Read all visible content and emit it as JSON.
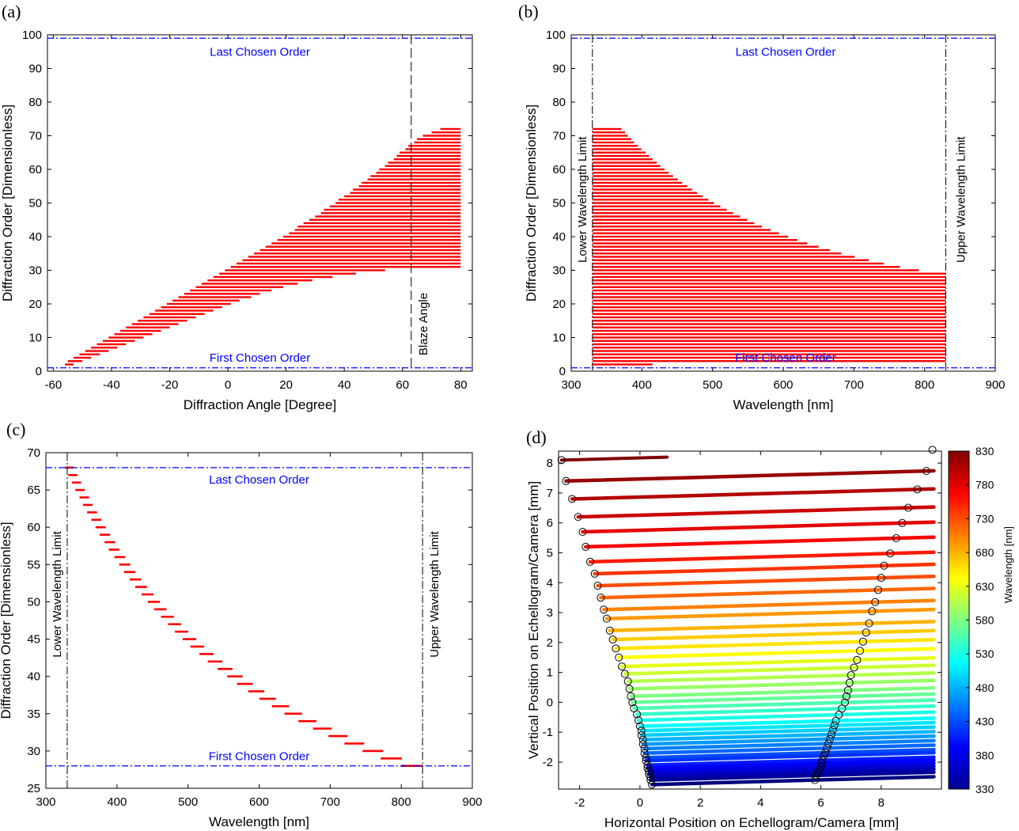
{
  "panels": [
    {
      "letter": "(a)",
      "chart_data": {
        "type": "bar",
        "orientation": "horizontal-range",
        "xlabel": "Diffraction Angle [Degree]",
        "ylabel": "Diffraction Order [Dimensionless]",
        "xlim": [
          -62,
          84
        ],
        "ylim": [
          0,
          100
        ],
        "xticks": [
          -60,
          -40,
          -20,
          0,
          20,
          40,
          60,
          80
        ],
        "yticks": [
          0,
          10,
          20,
          30,
          40,
          50,
          60,
          70,
          80,
          90,
          100
        ],
        "series": {
          "name": "diffraction orders",
          "orders_from": 2,
          "orders_to": 72,
          "start_angle": [
            -56,
            -55,
            -53,
            -51,
            -49,
            -47,
            -45,
            -43,
            -41,
            -39,
            -37,
            -35,
            -33,
            -31,
            -29,
            -27,
            -25,
            -23,
            -21,
            -19,
            -17,
            -15,
            -13,
            -11,
            -9,
            -7,
            -5,
            -3,
            -1,
            1,
            3,
            5,
            7,
            9,
            11,
            13,
            15,
            17,
            19,
            21,
            23,
            24,
            26,
            28,
            30,
            32,
            33,
            35,
            37,
            38,
            40,
            42,
            43,
            45,
            46,
            48,
            49,
            51,
            52,
            54,
            55,
            57,
            58,
            59,
            61,
            62,
            64,
            65,
            67,
            70,
            73
          ],
          "end_angle": [
            -53,
            -50,
            -47,
            -44,
            -41,
            -38,
            -35,
            -32,
            -29,
            -26,
            -23,
            -20,
            -17,
            -14,
            -11,
            -8,
            -5,
            -2,
            1,
            4,
            8,
            11,
            15,
            19,
            24,
            29,
            36,
            44,
            54,
            80,
            80,
            80,
            80,
            80,
            80,
            80,
            80,
            80,
            80,
            80,
            80,
            80,
            80,
            80,
            80,
            80,
            80,
            80,
            80,
            80,
            80,
            80,
            80,
            80,
            80,
            80,
            80,
            80,
            80,
            80,
            80,
            80,
            80,
            80,
            80,
            80,
            80,
            80,
            80,
            80,
            80
          ],
          "color": "#ff0000"
        },
        "reference_lines": {
          "last_order": {
            "value": 99,
            "label": "Last Chosen Order"
          },
          "first_order": {
            "value": 1,
            "label": "First Chosen Order"
          },
          "blaze": {
            "value": 63,
            "label": "Blaze Angle"
          }
        }
      }
    },
    {
      "letter": "(b)",
      "chart_data": {
        "type": "bar",
        "orientation": "horizontal-range",
        "xlabel": "Wavelength [nm]",
        "ylabel": "Diffraction Order [Dimensionless]",
        "xlim": [
          300,
          900
        ],
        "ylim": [
          0,
          100
        ],
        "xticks": [
          300,
          400,
          500,
          600,
          700,
          800,
          900
        ],
        "yticks": [
          0,
          10,
          20,
          30,
          40,
          50,
          60,
          70,
          80,
          90,
          100
        ],
        "series": {
          "name": "diffraction orders",
          "orders_from": 2,
          "orders_to": 72,
          "start_wavelength": 330,
          "end_wavelength": [
            415,
            830,
            830,
            830,
            830,
            830,
            830,
            830,
            830,
            830,
            830,
            830,
            830,
            830,
            830,
            830,
            830,
            830,
            830,
            830,
            830,
            830,
            830,
            830,
            830,
            830,
            830,
            830,
            792,
            765,
            742,
            721,
            701,
            682,
            666,
            650,
            634,
            620,
            607,
            594,
            582,
            570,
            559,
            549,
            539,
            529,
            520,
            511,
            502,
            494,
            486,
            478,
            471,
            464,
            457,
            451,
            444,
            438,
            432,
            426,
            421,
            415,
            410,
            405,
            399,
            394,
            389,
            385,
            380,
            376,
            371
          ],
          "color": "#ff0000"
        },
        "reference_lines": {
          "last_order": {
            "value": 99,
            "label": "Last Chosen Order"
          },
          "first_order": {
            "value": 1,
            "label": "First Chosen Order"
          },
          "lower_limit": {
            "value": 330,
            "label": "Lower Wavelength Limit"
          },
          "upper_limit": {
            "value": 830,
            "label": "Upper Wavelength Limit"
          }
        }
      }
    },
    {
      "letter": "(c)",
      "chart_data": {
        "type": "bar",
        "orientation": "horizontal-range",
        "xlabel": "Wavelength [nm]",
        "ylabel": "Diffraction Order [Dimensionless]",
        "xlim": [
          300,
          900
        ],
        "ylim": [
          25,
          70
        ],
        "xticks": [
          300,
          400,
          500,
          600,
          700,
          800,
          900
        ],
        "yticks": [
          25,
          30,
          35,
          40,
          45,
          50,
          55,
          60,
          65,
          70
        ],
        "series": {
          "name": "diffraction orders",
          "orders": [
            28,
            29,
            30,
            31,
            32,
            33,
            34,
            35,
            36,
            37,
            38,
            39,
            40,
            41,
            42,
            43,
            44,
            45,
            46,
            47,
            48,
            49,
            50,
            51,
            52,
            53,
            54,
            55,
            56,
            57,
            58,
            59,
            60,
            61,
            62,
            63,
            64,
            65,
            66,
            67,
            68
          ],
          "center_wavelength": [
            815,
            786,
            760,
            734,
            711,
            689,
            668,
            648,
            630,
            612,
            596,
            580,
            566,
            552,
            538,
            526,
            513,
            502,
            491,
            481,
            471,
            461,
            452,
            443,
            434,
            426,
            418,
            411,
            404,
            396,
            390,
            383,
            377,
            371,
            365,
            359,
            354,
            348,
            343,
            338,
            333
          ],
          "color": "#ff0000"
        },
        "reference_lines": {
          "last_order": {
            "value": 68,
            "label": "Last Chosen Order"
          },
          "first_order": {
            "value": 28,
            "label": "First Chosen Order"
          },
          "lower_limit": {
            "value": 330,
            "label": "Lower Wavelength Limit"
          },
          "upper_limit": {
            "value": 830,
            "label": "Upper Wavelength Limit"
          }
        }
      }
    },
    {
      "letter": "(d)",
      "chart_data": {
        "type": "line",
        "xlabel": "Horizontal Position on Echellogram/Camera [mm]",
        "ylabel": "Vertical Position on Echellogram/Camera [mm]",
        "xlim": [
          -2.7,
          10
        ],
        "ylim": [
          -2.9,
          8.4
        ],
        "xticks": [
          -2,
          0,
          2,
          4,
          6,
          8
        ],
        "yticks": [
          -2,
          -1,
          0,
          1,
          2,
          3,
          4,
          5,
          6,
          7,
          8
        ],
        "series": {
          "name": "echelle orders",
          "y_levels": [
            8.1,
            7.4,
            6.8,
            6.2,
            5.7,
            5.2,
            4.7,
            4.3,
            3.9,
            3.5,
            3.1,
            2.8,
            2.4,
            2.1,
            1.8,
            1.5,
            1.2,
            0.95,
            0.7,
            0.45,
            0.2,
            0.0,
            -0.2,
            -0.4,
            -0.6,
            -0.8,
            -0.95,
            -1.1,
            -1.25,
            -1.4,
            -1.55,
            -1.7,
            -1.85,
            -1.95,
            -2.1,
            -2.2,
            -2.3,
            -2.4,
            -2.5,
            -2.6,
            -2.75
          ],
          "left_markers_x": [
            -2.6,
            -2.45,
            -2.25,
            -2.05,
            -1.9,
            -1.8,
            -1.65,
            -1.5,
            -1.4,
            -1.3,
            -1.2,
            -1.1,
            -1.0,
            -0.9,
            -0.8,
            -0.7,
            -0.6,
            -0.5,
            -0.4,
            -0.35,
            -0.3,
            -0.25,
            -0.2,
            -0.1,
            -0.05,
            0.0,
            0.05,
            0.05,
            0.1,
            0.1,
            0.15,
            0.15,
            0.2,
            0.2,
            0.25,
            0.25,
            0.3,
            0.3,
            0.35,
            0.35,
            0.4
          ],
          "right_markers_x": [
            9.7,
            9.5,
            9.2,
            8.9,
            8.7,
            8.5,
            8.3,
            8.1,
            8.0,
            7.9,
            7.8,
            7.7,
            7.6,
            7.5,
            7.4,
            7.3,
            7.2,
            7.1,
            7.0,
            6.95,
            6.9,
            6.85,
            6.8,
            6.7,
            6.6,
            6.5,
            6.45,
            6.4,
            6.35,
            6.3,
            6.25,
            6.2,
            6.15,
            6.1,
            6.05,
            6.0,
            6.0,
            5.95,
            5.9,
            5.85,
            5.8
          ]
        },
        "colorbar": {
          "label": "Wavelength [nm]",
          "ticks": [
            330,
            380,
            430,
            480,
            530,
            580,
            630,
            680,
            730,
            780,
            830
          ],
          "range": [
            330,
            830
          ],
          "colormap": "jet"
        }
      }
    }
  ]
}
